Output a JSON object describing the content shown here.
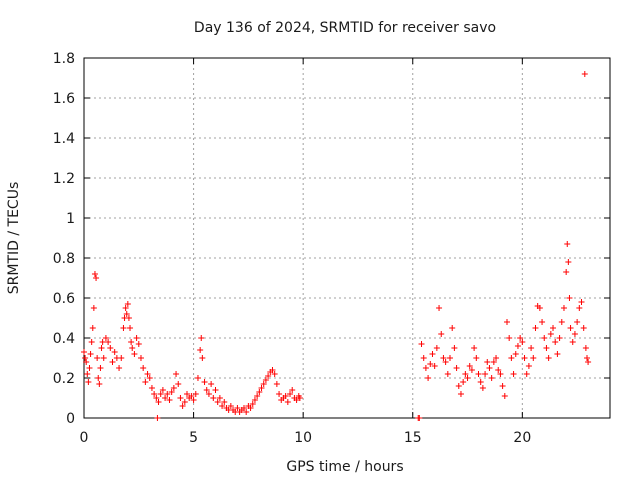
{
  "chart_data": {
    "type": "scatter",
    "title": "Day 136 of 2024, SRMTID for receiver savo",
    "xlabel": "GPS time / hours",
    "ylabel": "SRMTID / TECUs",
    "xlim": [
      0,
      24
    ],
    "ylim": [
      0,
      1.8
    ],
    "x_ticks": [
      0,
      5,
      10,
      15,
      20
    ],
    "y_ticks": [
      0,
      0.2,
      0.4,
      0.6,
      0.8,
      1,
      1.2,
      1.4,
      1.6,
      1.8
    ],
    "x_tick_labels": [
      "0",
      "5",
      "10",
      "15",
      "20"
    ],
    "y_tick_labels": [
      "0",
      "0.2",
      "0.4",
      "0.6",
      "0.8",
      "1",
      "1.2",
      "1.4",
      "1.6",
      "1.8"
    ],
    "grid": true,
    "marker": "+",
    "marker_color": "#ff0000",
    "series": [
      {
        "name": "savo",
        "points": [
          [
            0.0,
            0.33
          ],
          [
            0.05,
            0.3
          ],
          [
            0.1,
            0.28
          ],
          [
            0.15,
            0.22
          ],
          [
            0.2,
            0.18
          ],
          [
            0.25,
            0.25
          ],
          [
            0.3,
            0.32
          ],
          [
            0.35,
            0.38
          ],
          [
            0.4,
            0.45
          ],
          [
            0.45,
            0.55
          ],
          [
            0.5,
            0.72
          ],
          [
            0.55,
            0.7
          ],
          [
            0.6,
            0.3
          ],
          [
            0.65,
            0.2
          ],
          [
            0.7,
            0.17
          ],
          [
            0.75,
            0.25
          ],
          [
            0.8,
            0.35
          ],
          [
            0.85,
            0.38
          ],
          [
            0.9,
            0.3
          ],
          [
            1.0,
            0.4
          ],
          [
            1.1,
            0.38
          ],
          [
            1.2,
            0.35
          ],
          [
            1.3,
            0.28
          ],
          [
            1.4,
            0.33
          ],
          [
            1.5,
            0.3
          ],
          [
            1.6,
            0.25
          ],
          [
            1.7,
            0.3
          ],
          [
            1.8,
            0.45
          ],
          [
            1.85,
            0.5
          ],
          [
            1.9,
            0.55
          ],
          [
            1.95,
            0.52
          ],
          [
            2.0,
            0.57
          ],
          [
            2.05,
            0.5
          ],
          [
            2.1,
            0.45
          ],
          [
            2.15,
            0.38
          ],
          [
            2.2,
            0.35
          ],
          [
            2.3,
            0.32
          ],
          [
            2.4,
            0.4
          ],
          [
            2.5,
            0.37
          ],
          [
            2.6,
            0.3
          ],
          [
            2.7,
            0.25
          ],
          [
            2.8,
            0.18
          ],
          [
            2.9,
            0.22
          ],
          [
            3.0,
            0.2
          ],
          [
            3.1,
            0.15
          ],
          [
            3.2,
            0.12
          ],
          [
            3.3,
            0.1
          ],
          [
            3.35,
            0.0
          ],
          [
            3.4,
            0.08
          ],
          [
            3.5,
            0.12
          ],
          [
            3.6,
            0.14
          ],
          [
            3.7,
            0.1
          ],
          [
            3.8,
            0.12
          ],
          [
            3.9,
            0.09
          ],
          [
            4.0,
            0.13
          ],
          [
            4.1,
            0.15
          ],
          [
            4.2,
            0.22
          ],
          [
            4.3,
            0.17
          ],
          [
            4.4,
            0.1
          ],
          [
            4.5,
            0.06
          ],
          [
            4.6,
            0.08
          ],
          [
            4.7,
            0.12
          ],
          [
            4.8,
            0.1
          ],
          [
            4.9,
            0.11
          ],
          [
            5.0,
            0.09
          ],
          [
            5.1,
            0.12
          ],
          [
            5.2,
            0.2
          ],
          [
            5.3,
            0.34
          ],
          [
            5.35,
            0.4
          ],
          [
            5.4,
            0.3
          ],
          [
            5.5,
            0.18
          ],
          [
            5.6,
            0.14
          ],
          [
            5.7,
            0.12
          ],
          [
            5.8,
            0.17
          ],
          [
            5.9,
            0.1
          ],
          [
            6.0,
            0.14
          ],
          [
            6.1,
            0.08
          ],
          [
            6.2,
            0.1
          ],
          [
            6.3,
            0.06
          ],
          [
            6.4,
            0.08
          ],
          [
            6.5,
            0.05
          ],
          [
            6.6,
            0.04
          ],
          [
            6.7,
            0.06
          ],
          [
            6.8,
            0.04
          ],
          [
            6.9,
            0.03
          ],
          [
            7.0,
            0.05
          ],
          [
            7.1,
            0.03
          ],
          [
            7.2,
            0.04
          ],
          [
            7.3,
            0.05
          ],
          [
            7.4,
            0.03
          ],
          [
            7.5,
            0.06
          ],
          [
            7.6,
            0.05
          ],
          [
            7.7,
            0.07
          ],
          [
            7.8,
            0.09
          ],
          [
            7.9,
            0.11
          ],
          [
            8.0,
            0.13
          ],
          [
            8.1,
            0.15
          ],
          [
            8.2,
            0.17
          ],
          [
            8.3,
            0.19
          ],
          [
            8.4,
            0.21
          ],
          [
            8.5,
            0.23
          ],
          [
            8.6,
            0.24
          ],
          [
            8.7,
            0.22
          ],
          [
            8.8,
            0.17
          ],
          [
            8.9,
            0.12
          ],
          [
            9.0,
            0.09
          ],
          [
            9.1,
            0.1
          ],
          [
            9.2,
            0.11
          ],
          [
            9.3,
            0.08
          ],
          [
            9.4,
            0.12
          ],
          [
            9.5,
            0.14
          ],
          [
            9.6,
            0.1
          ],
          [
            9.7,
            0.09
          ],
          [
            9.8,
            0.11
          ],
          [
            9.85,
            0.1
          ],
          [
            15.25,
            0.0
          ],
          [
            15.3,
            0.0
          ],
          [
            15.4,
            0.37
          ],
          [
            15.5,
            0.3
          ],
          [
            15.6,
            0.25
          ],
          [
            15.7,
            0.2
          ],
          [
            15.8,
            0.27
          ],
          [
            15.9,
            0.32
          ],
          [
            16.0,
            0.26
          ],
          [
            16.1,
            0.35
          ],
          [
            16.2,
            0.55
          ],
          [
            16.3,
            0.42
          ],
          [
            16.4,
            0.3
          ],
          [
            16.5,
            0.28
          ],
          [
            16.6,
            0.22
          ],
          [
            16.7,
            0.3
          ],
          [
            16.8,
            0.45
          ],
          [
            16.9,
            0.35
          ],
          [
            17.0,
            0.25
          ],
          [
            17.1,
            0.16
          ],
          [
            17.2,
            0.12
          ],
          [
            17.3,
            0.18
          ],
          [
            17.4,
            0.22
          ],
          [
            17.5,
            0.2
          ],
          [
            17.6,
            0.26
          ],
          [
            17.7,
            0.24
          ],
          [
            17.8,
            0.35
          ],
          [
            17.9,
            0.3
          ],
          [
            18.0,
            0.22
          ],
          [
            18.1,
            0.18
          ],
          [
            18.2,
            0.15
          ],
          [
            18.3,
            0.22
          ],
          [
            18.4,
            0.28
          ],
          [
            18.5,
            0.25
          ],
          [
            18.6,
            0.2
          ],
          [
            18.7,
            0.28
          ],
          [
            18.8,
            0.3
          ],
          [
            18.9,
            0.24
          ],
          [
            19.0,
            0.22
          ],
          [
            19.1,
            0.16
          ],
          [
            19.2,
            0.11
          ],
          [
            19.3,
            0.48
          ],
          [
            19.4,
            0.4
          ],
          [
            19.5,
            0.3
          ],
          [
            19.6,
            0.22
          ],
          [
            19.7,
            0.32
          ],
          [
            19.8,
            0.36
          ],
          [
            19.9,
            0.4
          ],
          [
            20.0,
            0.38
          ],
          [
            20.1,
            0.3
          ],
          [
            20.2,
            0.22
          ],
          [
            20.3,
            0.26
          ],
          [
            20.4,
            0.35
          ],
          [
            20.5,
            0.3
          ],
          [
            20.6,
            0.45
          ],
          [
            20.7,
            0.56
          ],
          [
            20.8,
            0.55
          ],
          [
            20.9,
            0.48
          ],
          [
            21.0,
            0.4
          ],
          [
            21.1,
            0.35
          ],
          [
            21.2,
            0.3
          ],
          [
            21.3,
            0.42
          ],
          [
            21.4,
            0.45
          ],
          [
            21.5,
            0.38
          ],
          [
            21.6,
            0.32
          ],
          [
            21.7,
            0.4
          ],
          [
            21.8,
            0.48
          ],
          [
            21.9,
            0.55
          ],
          [
            22.0,
            0.73
          ],
          [
            22.05,
            0.87
          ],
          [
            22.1,
            0.78
          ],
          [
            22.15,
            0.6
          ],
          [
            22.2,
            0.45
          ],
          [
            22.3,
            0.38
          ],
          [
            22.4,
            0.42
          ],
          [
            22.5,
            0.48
          ],
          [
            22.6,
            0.55
          ],
          [
            22.7,
            0.58
          ],
          [
            22.8,
            0.45
          ],
          [
            22.9,
            0.35
          ],
          [
            22.95,
            0.3
          ],
          [
            23.0,
            0.28
          ],
          [
            22.85,
            1.72
          ]
        ]
      }
    ]
  }
}
